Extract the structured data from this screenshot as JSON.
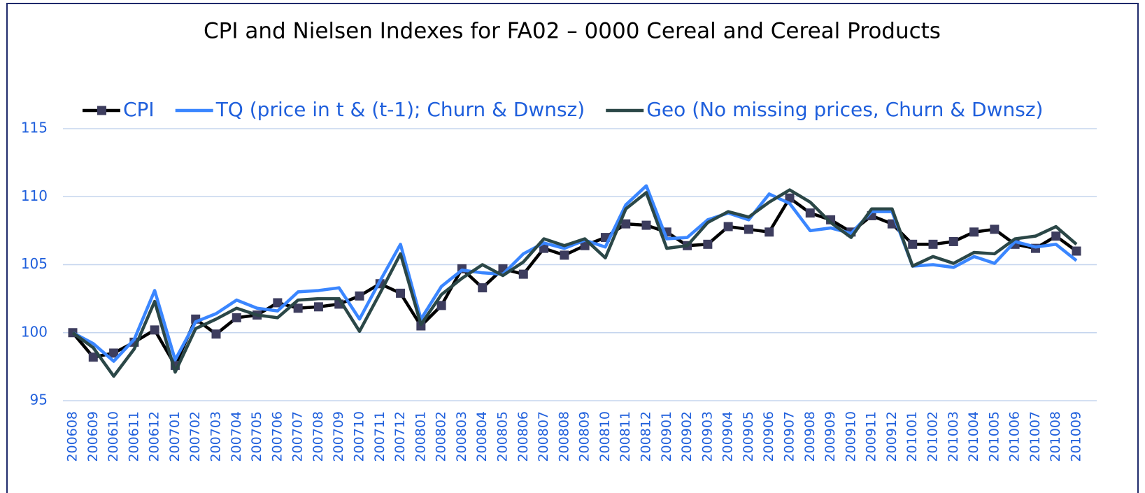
{
  "chart_data": {
    "type": "line",
    "title": "CPI  and Nielsen Indexes for FA02 – 0000 Cereal and Cereal Products",
    "categories": [
      "200608",
      "200609",
      "200610",
      "200611",
      "200612",
      "200701",
      "200702",
      "200703",
      "200704",
      "200705",
      "200706",
      "200707",
      "200708",
      "200709",
      "200710",
      "200711",
      "200712",
      "200801",
      "200802",
      "200803",
      "200804",
      "200805",
      "200806",
      "200807",
      "200808",
      "200809",
      "200810",
      "200811",
      "200812",
      "200901",
      "200902",
      "200903",
      "200904",
      "200905",
      "200906",
      "200907",
      "200908",
      "200909",
      "200910",
      "200911",
      "200912",
      "201001",
      "201002",
      "201003",
      "201004",
      "201005",
      "201006",
      "201007",
      "201008",
      "201009"
    ],
    "series": [
      {
        "name": "CPI",
        "color": "#000000",
        "marker": "square",
        "marker_color": "#3d3d5e",
        "values": [
          100,
          98.2,
          98.5,
          99.3,
          100.2,
          97.6,
          101.0,
          99.9,
          101.1,
          101.3,
          102.2,
          101.8,
          101.9,
          102.1,
          102.7,
          103.6,
          102.9,
          100.5,
          102.0,
          104.7,
          103.3,
          104.7,
          104.3,
          106.2,
          105.7,
          106.4,
          107.0,
          108.0,
          107.9,
          107.4,
          106.4,
          106.5,
          107.8,
          107.6,
          107.4,
          109.9,
          108.8,
          108.3,
          107.4,
          108.6,
          108.0,
          106.5,
          106.5,
          106.7,
          107.4,
          107.6,
          106.5,
          106.2,
          107.1,
          106.0
        ]
      },
      {
        "name": "TQ (price in t & (t-1); Churn & Dwnsz)",
        "color": "#3a86ff",
        "values": [
          100,
          99.2,
          97.9,
          99.5,
          103.1,
          98.0,
          100.8,
          101.4,
          102.4,
          101.8,
          101.6,
          103.0,
          103.1,
          103.3,
          101.0,
          103.8,
          106.5,
          101.0,
          103.4,
          104.6,
          104.4,
          104.3,
          105.8,
          106.6,
          106.2,
          106.8,
          106.3,
          109.4,
          110.8,
          106.9,
          107.0,
          108.3,
          108.8,
          108.3,
          110.2,
          109.5,
          107.5,
          107.7,
          107.3,
          108.9,
          108.9,
          104.9,
          105.0,
          104.8,
          105.6,
          105.1,
          106.7,
          106.3,
          106.5,
          105.3
        ]
      },
      {
        "name": "Geo (No missing prices, Churn & Dwnsz)",
        "color": "#2b4747",
        "values": [
          100,
          98.9,
          96.8,
          98.8,
          102.3,
          97.1,
          100.3,
          101.0,
          101.8,
          101.3,
          101.1,
          102.4,
          102.5,
          102.5,
          100.1,
          102.9,
          105.8,
          100.6,
          102.8,
          104.0,
          105.0,
          104.2,
          105.2,
          106.9,
          106.4,
          106.9,
          105.5,
          109.1,
          110.3,
          106.2,
          106.4,
          108.1,
          108.9,
          108.5,
          109.6,
          110.5,
          109.6,
          108.1,
          107.0,
          109.1,
          109.1,
          104.9,
          105.6,
          105.1,
          105.9,
          105.8,
          106.9,
          107.1,
          107.8,
          106.5
        ]
      }
    ],
    "ylim": [
      95,
      115
    ],
    "yticks": [
      95,
      100,
      105,
      110,
      115
    ],
    "grid": true,
    "legend": "top"
  }
}
